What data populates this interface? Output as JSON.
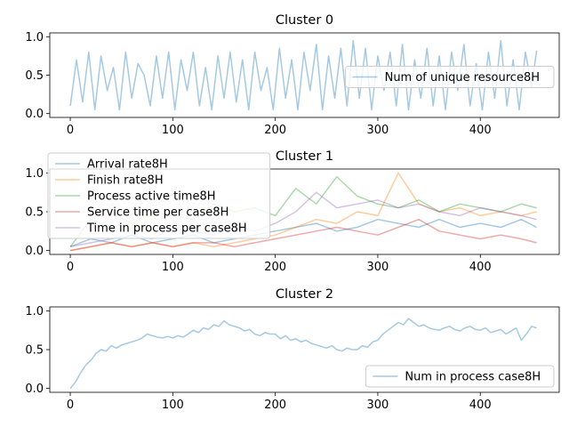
{
  "colors": {
    "blue": "#1f77b4",
    "orange": "#ff7f0e",
    "green": "#2ca02c",
    "red": "#d62728",
    "purple": "#9467bd"
  },
  "chart_data": [
    {
      "type": "line",
      "title": "Cluster 0",
      "xlim": [
        -20,
        477
      ],
      "ylim": [
        -0.05,
        1.05
      ],
      "xticks": [
        0,
        100,
        200,
        300,
        400
      ],
      "yticks": [
        0.0,
        0.5,
        1.0
      ],
      "xtick_labels": [
        "0",
        "100",
        "200",
        "300",
        "400"
      ],
      "ytick_labels": [
        "0.0",
        "0.5",
        "1.0"
      ],
      "legend_position": "center-right",
      "series": [
        {
          "name": "Num of unique resource8H",
          "color": "#1f77b4",
          "alpha": 0.4,
          "x": [
            0,
            6,
            12,
            18,
            24,
            30,
            36,
            42,
            48,
            54,
            60,
            66,
            72,
            78,
            84,
            90,
            96,
            102,
            108,
            114,
            120,
            126,
            132,
            138,
            144,
            150,
            156,
            162,
            168,
            174,
            180,
            186,
            192,
            198,
            204,
            210,
            216,
            222,
            228,
            234,
            240,
            246,
            252,
            258,
            264,
            270,
            276,
            282,
            288,
            294,
            300,
            306,
            312,
            318,
            324,
            330,
            336,
            342,
            348,
            354,
            360,
            366,
            372,
            378,
            384,
            390,
            396,
            402,
            408,
            414,
            420,
            426,
            432,
            438,
            444,
            450,
            455
          ],
          "y": [
            0.1,
            0.7,
            0.15,
            0.8,
            0.05,
            0.75,
            0.3,
            0.6,
            0.05,
            0.8,
            0.2,
            0.65,
            0.5,
            0.1,
            0.75,
            0.2,
            0.8,
            0.05,
            0.7,
            0.3,
            0.8,
            0.1,
            0.6,
            0.05,
            0.75,
            0.2,
            0.8,
            0.15,
            0.7,
            0.05,
            0.8,
            0.3,
            0.6,
            0.05,
            0.85,
            0.2,
            0.7,
            0.05,
            0.8,
            0.3,
            0.9,
            0.05,
            0.75,
            0.2,
            0.85,
            0.1,
            0.95,
            0.2,
            0.85,
            0.05,
            0.75,
            0.3,
            0.8,
            0.1,
            0.9,
            0.05,
            0.7,
            0.2,
            0.85,
            0.1,
            0.75,
            0.05,
            0.8,
            0.3,
            0.9,
            0.1,
            0.65,
            0.05,
            0.8,
            0.2,
            0.95,
            0.1,
            0.7,
            0.05,
            0.8,
            0.35,
            0.82
          ]
        }
      ]
    },
    {
      "type": "line",
      "title": "Cluster 1",
      "xlim": [
        -20,
        477
      ],
      "ylim": [
        -0.05,
        1.05
      ],
      "xticks": [
        0,
        100,
        200,
        300,
        400
      ],
      "yticks": [
        0.0,
        0.5,
        1.0
      ],
      "xtick_labels": [
        "0",
        "100",
        "200",
        "300",
        "400"
      ],
      "ytick_labels": [
        "0.0",
        "0.5",
        "1.0"
      ],
      "legend_position": "upper-left",
      "series": [
        {
          "name": "Arrival rate8H",
          "color": "#1f77b4",
          "alpha": 0.4,
          "x": [
            0,
            20,
            40,
            60,
            80,
            100,
            120,
            140,
            160,
            180,
            200,
            220,
            240,
            260,
            280,
            300,
            320,
            340,
            360,
            380,
            400,
            420,
            440,
            455
          ],
          "y": [
            0.05,
            0.15,
            0.1,
            0.2,
            0.1,
            0.15,
            0.2,
            0.1,
            0.15,
            0.2,
            0.25,
            0.3,
            0.35,
            0.25,
            0.3,
            0.4,
            0.35,
            0.3,
            0.4,
            0.3,
            0.35,
            0.3,
            0.4,
            0.3
          ]
        },
        {
          "name": "Finish rate8H",
          "color": "#ff7f0e",
          "alpha": 0.4,
          "x": [
            0,
            20,
            40,
            60,
            80,
            100,
            120,
            140,
            160,
            180,
            200,
            220,
            240,
            260,
            280,
            300,
            320,
            340,
            360,
            380,
            400,
            420,
            440,
            455
          ],
          "y": [
            0.0,
            0.05,
            0.1,
            0.05,
            0.1,
            0.05,
            0.1,
            0.05,
            0.1,
            0.15,
            0.2,
            0.3,
            0.4,
            0.35,
            0.5,
            0.45,
            1.0,
            0.6,
            0.5,
            0.55,
            0.45,
            0.5,
            0.45,
            0.5
          ]
        },
        {
          "name": "Process active time8H",
          "color": "#2ca02c",
          "alpha": 0.4,
          "x": [
            0,
            20,
            40,
            60,
            80,
            100,
            120,
            140,
            160,
            180,
            200,
            220,
            240,
            260,
            280,
            300,
            320,
            340,
            360,
            380,
            400,
            420,
            440,
            455
          ],
          "y": [
            0.05,
            0.4,
            0.3,
            0.35,
            0.5,
            0.45,
            0.4,
            0.6,
            0.5,
            0.55,
            0.45,
            0.8,
            0.6,
            0.95,
            0.7,
            0.6,
            0.55,
            0.65,
            0.5,
            0.6,
            0.55,
            0.5,
            0.6,
            0.55
          ]
        },
        {
          "name": "Service time per case8H",
          "color": "#d62728",
          "alpha": 0.4,
          "x": [
            0,
            20,
            40,
            60,
            80,
            100,
            120,
            140,
            160,
            180,
            200,
            220,
            240,
            260,
            280,
            300,
            320,
            340,
            360,
            380,
            400,
            420,
            440,
            455
          ],
          "y": [
            0.0,
            0.05,
            0.1,
            0.05,
            0.1,
            0.05,
            0.1,
            0.1,
            0.05,
            0.1,
            0.15,
            0.2,
            0.25,
            0.3,
            0.25,
            0.2,
            0.3,
            0.4,
            0.25,
            0.2,
            0.15,
            0.2,
            0.15,
            0.1
          ]
        },
        {
          "name": "Time in process per case8H",
          "color": "#9467bd",
          "alpha": 0.4,
          "x": [
            0,
            20,
            40,
            60,
            80,
            100,
            120,
            140,
            160,
            180,
            200,
            220,
            240,
            260,
            280,
            300,
            320,
            340,
            360,
            380,
            400,
            420,
            440,
            455
          ],
          "y": [
            0.05,
            0.1,
            0.15,
            0.2,
            0.15,
            0.3,
            0.25,
            0.2,
            0.3,
            0.25,
            0.35,
            0.5,
            0.75,
            0.55,
            0.6,
            0.65,
            0.55,
            0.6,
            0.5,
            0.45,
            0.55,
            0.5,
            0.45,
            0.4
          ]
        }
      ]
    },
    {
      "type": "line",
      "title": "Cluster 2",
      "xlim": [
        -20,
        477
      ],
      "ylim": [
        -0.05,
        1.05
      ],
      "xticks": [
        0,
        100,
        200,
        300,
        400
      ],
      "yticks": [
        0.0,
        0.5,
        1.0
      ],
      "xtick_labels": [
        "0",
        "100",
        "200",
        "300",
        "400"
      ],
      "ytick_labels": [
        "0.0",
        "0.5",
        "1.0"
      ],
      "legend_position": "lower-right",
      "series": [
        {
          "name": "Num in process case8H",
          "color": "#1f77b4",
          "alpha": 0.4,
          "x": [
            0,
            5,
            10,
            15,
            20,
            25,
            30,
            35,
            40,
            45,
            50,
            55,
            60,
            65,
            70,
            75,
            80,
            85,
            90,
            95,
            100,
            105,
            110,
            115,
            120,
            125,
            130,
            135,
            140,
            145,
            150,
            155,
            160,
            165,
            170,
            175,
            180,
            185,
            190,
            195,
            200,
            205,
            210,
            215,
            220,
            225,
            230,
            235,
            240,
            245,
            250,
            255,
            260,
            265,
            270,
            275,
            280,
            285,
            290,
            295,
            300,
            305,
            310,
            315,
            320,
            325,
            330,
            335,
            340,
            345,
            350,
            355,
            360,
            365,
            370,
            375,
            380,
            385,
            390,
            395,
            400,
            405,
            410,
            415,
            420,
            425,
            430,
            435,
            440,
            445,
            450,
            455
          ],
          "y": [
            0.0,
            0.08,
            0.2,
            0.3,
            0.36,
            0.45,
            0.5,
            0.48,
            0.55,
            0.52,
            0.56,
            0.58,
            0.6,
            0.62,
            0.65,
            0.7,
            0.68,
            0.66,
            0.65,
            0.67,
            0.65,
            0.68,
            0.66,
            0.7,
            0.75,
            0.72,
            0.78,
            0.76,
            0.82,
            0.8,
            0.87,
            0.82,
            0.8,
            0.78,
            0.74,
            0.76,
            0.7,
            0.68,
            0.72,
            0.7,
            0.7,
            0.64,
            0.68,
            0.62,
            0.64,
            0.6,
            0.62,
            0.58,
            0.56,
            0.54,
            0.52,
            0.55,
            0.5,
            0.48,
            0.52,
            0.5,
            0.5,
            0.55,
            0.53,
            0.6,
            0.62,
            0.7,
            0.75,
            0.8,
            0.85,
            0.82,
            0.9,
            0.85,
            0.8,
            0.82,
            0.78,
            0.76,
            0.75,
            0.78,
            0.8,
            0.76,
            0.74,
            0.78,
            0.8,
            0.76,
            0.75,
            0.78,
            0.72,
            0.74,
            0.76,
            0.7,
            0.74,
            0.78,
            0.62,
            0.7,
            0.8,
            0.78
          ]
        }
      ]
    }
  ]
}
